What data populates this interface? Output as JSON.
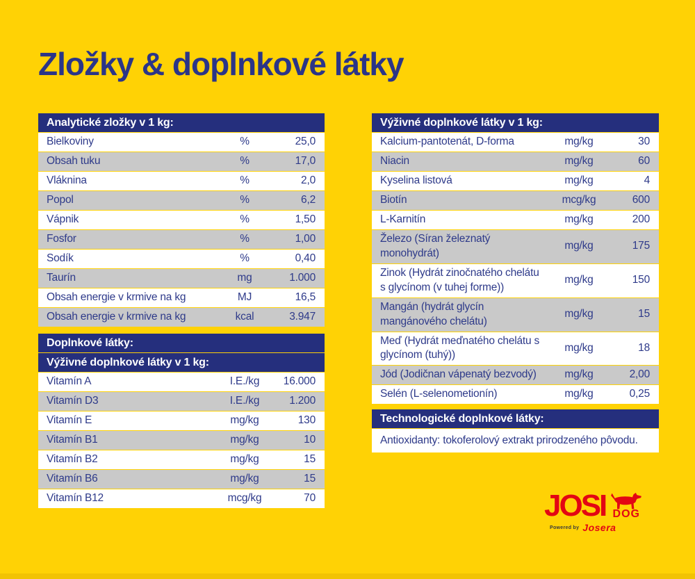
{
  "page": {
    "title": "Zložky & doplnkové látky",
    "colors": {
      "background": "#FFD205",
      "header_navy": "#252F7D",
      "text_navy": "#2E3A8A",
      "row_gray": "#C9C9C9",
      "row_white": "#FFFFFF",
      "brand_red": "#E30613"
    }
  },
  "tables": {
    "analytical": {
      "header": "Analytické zložky v 1 kg:",
      "rows": [
        {
          "name": "Bielkoviny",
          "unit": "%",
          "value": "25,0"
        },
        {
          "name": "Obsah tuku",
          "unit": "%",
          "value": "17,0"
        },
        {
          "name": "Vláknina",
          "unit": "%",
          "value": "2,0"
        },
        {
          "name": "Popol",
          "unit": "%",
          "value": "6,2"
        },
        {
          "name": "Vápnik",
          "unit": "%",
          "value": "1,50"
        },
        {
          "name": "Fosfor",
          "unit": "%",
          "value": "1,00"
        },
        {
          "name": "Sodík",
          "unit": "%",
          "value": "0,40"
        },
        {
          "name": "Taurín",
          "unit": "mg",
          "value": "1.000"
        },
        {
          "name": "Obsah energie v krmive na kg",
          "unit": "MJ",
          "value": "16,5"
        },
        {
          "name": "Obsah energie v krmive na kg",
          "unit": "kcal",
          "value": "3.947"
        }
      ]
    },
    "additives": {
      "header": "Doplnkové látky:"
    },
    "nutritional_left": {
      "header": "Výživné doplnkové látky v 1 kg:",
      "rows": [
        {
          "name": "Vitamín A",
          "unit": "I.E./kg",
          "value": "16.000"
        },
        {
          "name": "Vitamín D3",
          "unit": "I.E./kg",
          "value": "1.200"
        },
        {
          "name": "Vitamín E",
          "unit": "mg/kg",
          "value": "130"
        },
        {
          "name": "Vitamín B1",
          "unit": "mg/kg",
          "value": "10"
        },
        {
          "name": "Vitamín B2",
          "unit": "mg/kg",
          "value": "15"
        },
        {
          "name": "Vitamín B6",
          "unit": "mg/kg",
          "value": "15"
        },
        {
          "name": "Vitamín B12",
          "unit": "mcg/kg",
          "value": "70"
        }
      ]
    },
    "nutritional_right": {
      "header": "Výživné doplnkové látky v 1 kg:",
      "rows": [
        {
          "name": "Kalcium-pantotenát, D-forma",
          "unit": "mg/kg",
          "value": "30"
        },
        {
          "name": "Niacin",
          "unit": "mg/kg",
          "value": "60"
        },
        {
          "name": "Kyselina listová",
          "unit": "mg/kg",
          "value": "4"
        },
        {
          "name": "Biotín",
          "unit": "mcg/kg",
          "value": "600"
        },
        {
          "name": "L-Karnitín",
          "unit": "mg/kg",
          "value": "200"
        },
        {
          "name": "Železo (Síran železnatý monohydrát)",
          "unit": "mg/kg",
          "value": "175"
        },
        {
          "name": "Zinok (Hydrát zinočnatého chelátu s glycínom (v tuhej forme))",
          "unit": "mg/kg",
          "value": "150"
        },
        {
          "name": "Mangán (hydrát glycín mangánového chelátu)",
          "unit": "mg/kg",
          "value": "15"
        },
        {
          "name": "Meď (Hydrát meďnatého chelátu s glycínom (tuhý))",
          "unit": "mg/kg",
          "value": "18"
        },
        {
          "name": "Jód (Jodičnan vápenatý bezvodý)",
          "unit": "mg/kg",
          "value": "2,00"
        },
        {
          "name": "Selén (L-selenometionín)",
          "unit": "mg/kg",
          "value": "0,25"
        }
      ]
    },
    "technological": {
      "header": "Technologické doplnkové látky:",
      "note": "Antioxidanty: tokoferolový extrakt prirodzeného pôvodu."
    }
  },
  "logo": {
    "brand": "JOSI",
    "sub_brand": "DOG",
    "powered_by_label": "Powered by",
    "powered_by_brand": "Josera"
  }
}
